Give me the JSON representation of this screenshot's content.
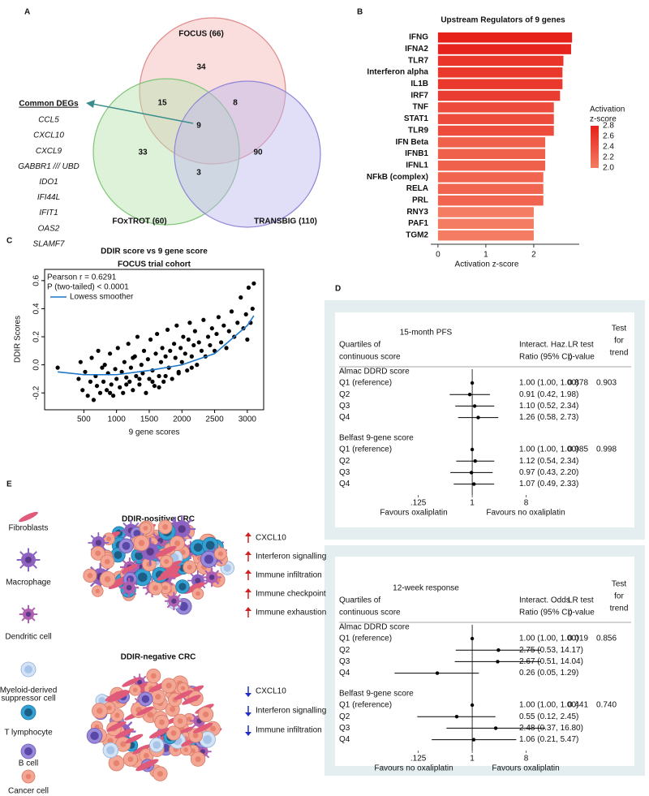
{
  "panel_labels": [
    "A",
    "B",
    "C",
    "D",
    "E"
  ],
  "chart_data": [
    {
      "type": "venn",
      "sets": [
        "FOCUS (66)",
        "FOxTROT (60)",
        "TRANSBIG (110)"
      ],
      "region_counts": [
        34,
        15,
        8,
        9,
        33,
        3,
        90
      ],
      "common_label": "Common DEGs",
      "genes": [
        "CCL5",
        "CXCL10",
        "CXCL9",
        "GABBR1 /// UBD",
        "IDO1",
        "IFI44L",
        "IFIT1",
        "OAS2",
        "SLAMF7"
      ]
    },
    {
      "type": "bar",
      "title": "Upstream Regulators of 9 genes",
      "categories": [
        "IFNG",
        "IFNA2",
        "TLR7",
        "Interferon alpha",
        "IL1B",
        "IRF7",
        "TNF",
        "STAT1",
        "TLR9",
        "IFN Beta",
        "IFNB1",
        "IFNL1",
        "NFkB (complex)",
        "RELA",
        "PRL",
        "RNY3",
        "PAF1",
        "TGM2"
      ],
      "values": [
        2.8,
        2.78,
        2.62,
        2.6,
        2.6,
        2.55,
        2.42,
        2.42,
        2.42,
        2.24,
        2.24,
        2.24,
        2.2,
        2.2,
        2.2,
        2.0,
        2.0,
        2.0
      ],
      "xlabel": "Activation z-score",
      "xlim": [
        -0.15,
        2.95
      ],
      "xticks": [
        0,
        1,
        2
      ],
      "colorbar": {
        "title": [
          "Activation",
          "z-score"
        ],
        "ticks": [
          2.8,
          2.6,
          2.4,
          2.2,
          {
            "value": 2.0,
            "label": "2.0"
          }
        ],
        "colors": [
          "#f47c62",
          "#e6211a"
        ]
      }
    },
    {
      "type": "scatter",
      "title": [
        "DDIR score vs 9 gene score",
        "FOCUS trial cohort"
      ],
      "annotations": [
        "Pearson r = 0.6291",
        "P (two-tailed) < 0.0001"
      ],
      "xlabel": "9 gene scores",
      "ylabel": "DDIR Scores",
      "xlim": [
        -100,
        3250
      ],
      "ylim": [
        -0.32,
        0.68
      ],
      "xticks": [
        500,
        1000,
        1500,
        2000,
        2500,
        3000
      ],
      "yticks": [
        -0.2,
        {
          "value": 0,
          "label": "0.0"
        },
        0.2,
        0.4,
        0.6
      ],
      "color": "#000000",
      "x": [
        100,
        420,
        450,
        480,
        520,
        560,
        600,
        620,
        650,
        680,
        700,
        720,
        750,
        780,
        800,
        820,
        850,
        870,
        900,
        920,
        950,
        980,
        1000,
        1020,
        1050,
        1080,
        1100,
        1120,
        1150,
        1180,
        1200,
        1220,
        1250,
        1280,
        1300,
        1320,
        1350,
        1380,
        1400,
        1420,
        1450,
        1480,
        1500,
        1520,
        1550,
        1580,
        1600,
        1620,
        1650,
        1680,
        1700,
        1720,
        1750,
        1780,
        1800,
        1820,
        1850,
        1880,
        1900,
        1920,
        1950,
        1980,
        2000,
        2020,
        2050,
        2080,
        2100,
        2120,
        2150,
        2180,
        2200,
        2230,
        2260,
        2300,
        2330,
        2360,
        2400,
        2430,
        2460,
        2500,
        2530,
        2560,
        2600,
        2640,
        2680,
        2720,
        2760,
        2800,
        2850,
        2900,
        2940,
        2980,
        3000,
        3020,
        3050,
        3080,
        3100,
        1150,
        1350,
        1550,
        1750,
        1950,
        2150,
        900,
        1250,
        1650
      ],
      "y": [
        -0.02,
        -0.1,
        0.02,
        -0.18,
        -0.05,
        -0.22,
        -0.12,
        0.05,
        -0.25,
        -0.08,
        -0.15,
        0.1,
        -0.2,
        -0.02,
        -0.12,
        0.0,
        -0.18,
        -0.06,
        0.08,
        -0.14,
        -0.22,
        -0.03,
        -0.1,
        0.12,
        -0.16,
        -0.05,
        -0.2,
        0.02,
        -0.09,
        0.15,
        -0.12,
        -0.02,
        -0.18,
        0.06,
        -0.08,
        0.2,
        -0.14,
        0.0,
        -0.06,
        0.1,
        -0.2,
        0.04,
        -0.1,
        0.18,
        -0.04,
        -0.15,
        0.08,
        0.22,
        -0.08,
        0.02,
        0.12,
        -0.12,
        0.06,
        0.25,
        -0.02,
        0.1,
        -0.1,
        0.15,
        0.05,
        0.28,
        -0.06,
        0.12,
        0.02,
        0.2,
        0.08,
        -0.04,
        0.18,
        0.3,
        0.06,
        0.14,
        0.24,
        0.0,
        0.16,
        0.1,
        0.32,
        0.06,
        0.2,
        0.14,
        0.26,
        0.1,
        0.22,
        0.34,
        0.16,
        0.28,
        0.12,
        0.24,
        0.38,
        0.2,
        0.3,
        0.48,
        0.26,
        0.36,
        0.18,
        0.55,
        0.3,
        0.4,
        0.58,
        -0.14,
        -0.1,
        -0.12,
        -0.08,
        -0.05,
        -0.02,
        -0.2,
        0.05,
        -0.16
      ],
      "lowess": {
        "name": "Lowess smoother",
        "color": "#1f77c9",
        "x": [
          100,
          500,
          1000,
          1500,
          2000,
          2500,
          3000,
          3100
        ],
        "y": [
          -0.05,
          -0.07,
          -0.07,
          -0.04,
          0.0,
          0.08,
          0.28,
          0.35
        ]
      }
    },
    {
      "type": "forest",
      "title": "15-month PFS",
      "header": [
        [
          "Quartiles of",
          "continuous score"
        ],
        [
          "Interact. Haz.",
          "Ratio (95% CI)"
        ],
        [
          "LR test",
          "p-value"
        ],
        [
          "Test",
          "for",
          "trend"
        ]
      ],
      "xscale": "log",
      "xlim": [
        0.03,
        40
      ],
      "xticks": [
        {
          "value": 0.125,
          "label": ".125"
        },
        1,
        8
      ],
      "favours": [
        "Favours oxaliplatin",
        "Favours no oxaliplatin"
      ],
      "groups": [
        {
          "name": "Almac DDRD score",
          "p_lr": "0.878",
          "p_trend": "0.903",
          "rows": [
            {
              "label": "Q1 (reference)",
              "value": 1.0,
              "lo": 1.0,
              "hi": 1.0,
              "value_label": "1.00 (1.00, 1.00)"
            },
            {
              "label": "Q2",
              "value": 0.91,
              "lo": 0.42,
              "hi": 1.98,
              "value_label": "0.91 (0.42, 1.98)"
            },
            {
              "label": "Q3",
              "value": 1.1,
              "lo": 0.52,
              "hi": 2.34,
              "value_label": "1.10 (0.52, 2.34)"
            },
            {
              "label": "Q4",
              "value": 1.26,
              "lo": 0.58,
              "hi": 2.73,
              "value_label": "1.26 (0.58, 2.73)"
            }
          ]
        },
        {
          "name": "Belfast 9-gene score",
          "p_lr": "0.985",
          "p_trend": "0.998",
          "rows": [
            {
              "label": "Q1 (reference)",
              "value": 1.0,
              "lo": 1.0,
              "hi": 1.0,
              "value_label": "1.00 (1.00, 1.00)"
            },
            {
              "label": "Q2",
              "value": 1.12,
              "lo": 0.54,
              "hi": 2.34,
              "value_label": "1.12 (0.54, 2.34)"
            },
            {
              "label": "Q3",
              "value": 0.97,
              "lo": 0.43,
              "hi": 2.2,
              "value_label": "0.97 (0.43, 2.20)"
            },
            {
              "label": "Q4",
              "value": 1.07,
              "lo": 0.49,
              "hi": 2.33,
              "value_label": "1.07 (0.49, 2.33)"
            }
          ]
        }
      ]
    },
    {
      "type": "forest",
      "title": "12-week response",
      "header": [
        [
          "Quartiles of",
          "continuous score"
        ],
        [
          "Interact. Odds",
          "Ratio (95% CI)"
        ],
        [
          "LR test",
          "p-value"
        ],
        [
          "Test",
          "for",
          "trend"
        ]
      ],
      "xscale": "log",
      "xlim": [
        0.03,
        40
      ],
      "xticks": [
        {
          "value": 0.125,
          "label": ".125"
        },
        1,
        8
      ],
      "favours": [
        "Favours no oxaliplatin",
        "Favours oxaliplatin"
      ],
      "groups": [
        {
          "name": "Almac DDRD score",
          "p_lr": "0.019",
          "p_trend": "0.856",
          "rows": [
            {
              "label": "Q1 (reference)",
              "value": 1.0,
              "lo": 1.0,
              "hi": 1.0,
              "value_label": "1.00 (1.00, 1.00)"
            },
            {
              "label": "Q2",
              "value": 2.75,
              "lo": 0.53,
              "hi": 14.17,
              "value_label": "2.75 (0.53, 14.17)"
            },
            {
              "label": "Q3",
              "value": 2.67,
              "lo": 0.51,
              "hi": 14.04,
              "value_label": "2.67 (0.51, 14.04)"
            },
            {
              "label": "Q4",
              "value": 0.26,
              "lo": 0.05,
              "hi": 1.29,
              "value_label": "0.26 (0.05, 1.29)"
            }
          ]
        },
        {
          "name": "Belfast 9-gene score",
          "p_lr": "0.441",
          "p_trend": "0.740",
          "rows": [
            {
              "label": "Q1 (reference)",
              "value": 1.0,
              "lo": 1.0,
              "hi": 1.0,
              "value_label": "1.00 (1.00, 1.00)"
            },
            {
              "label": "Q2",
              "value": 0.55,
              "lo": 0.12,
              "hi": 2.45,
              "value_label": "0.55 (0.12, 2.45)"
            },
            {
              "label": "Q3",
              "value": 2.48,
              "lo": 0.37,
              "hi": 16.8,
              "value_label": "2.48 (0.37, 16.80)"
            },
            {
              "label": "Q4",
              "value": 1.06,
              "lo": 0.21,
              "hi": 5.47,
              "value_label": "1.06 (0.21, 5.47)"
            }
          ]
        }
      ]
    }
  ],
  "illustration": {
    "cell_types": [
      [
        "Fibroblasts"
      ],
      [
        "Macrophage"
      ],
      [
        "Dendritic cell"
      ],
      [
        "Myeloid-derived",
        "suppressor cell"
      ],
      [
        "T lymphocyte"
      ],
      [
        "B cell"
      ],
      [
        "Cancer cell"
      ]
    ],
    "positive": {
      "title": "DDIR-positive CRC",
      "up": [
        "CXCL10",
        "Interferon signalling",
        "Immune infiltration",
        "Immune checkpoint",
        "Immune exhaustion"
      ]
    },
    "negative": {
      "title": "DDIR-negative CRC",
      "down": [
        "CXCL10",
        "Interferon signalling",
        "Immune infiltration"
      ]
    }
  }
}
